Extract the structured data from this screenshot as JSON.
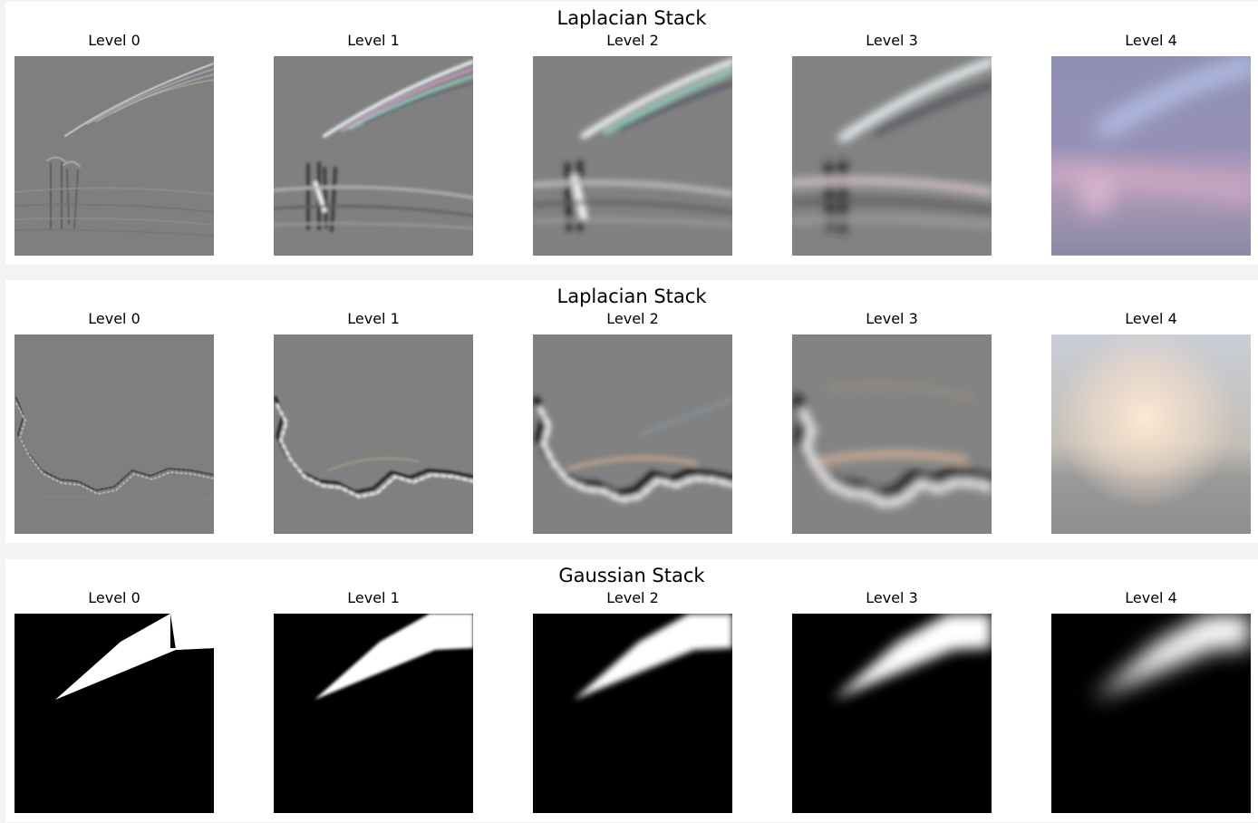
{
  "figures": [
    {
      "title": "Laplacian Stack",
      "panels": [
        {
          "label": "Level 0",
          "image": "laplacian-texture-couple-comet-level-0"
        },
        {
          "label": "Level 1",
          "image": "laplacian-texture-couple-comet-level-1"
        },
        {
          "label": "Level 2",
          "image": "laplacian-texture-couple-comet-level-2"
        },
        {
          "label": "Level 3",
          "image": "laplacian-texture-couple-comet-level-3"
        },
        {
          "label": "Level 4",
          "image": "laplacian-lowpass-sky-level-4"
        }
      ]
    },
    {
      "title": "Laplacian Stack",
      "panels": [
        {
          "label": "Level 0",
          "image": "laplacian-texture-horizon-edge-level-0"
        },
        {
          "label": "Level 1",
          "image": "laplacian-texture-horizon-edge-level-1"
        },
        {
          "label": "Level 2",
          "image": "laplacian-texture-horizon-edge-level-2"
        },
        {
          "label": "Level 3",
          "image": "laplacian-texture-horizon-edge-level-3"
        },
        {
          "label": "Level 4",
          "image": "laplacian-lowpass-glow-level-4"
        }
      ]
    },
    {
      "title": "Gaussian Stack",
      "panels": [
        {
          "label": "Level 0",
          "image": "gaussian-mask-level-0"
        },
        {
          "label": "Level 1",
          "image": "gaussian-mask-level-1"
        },
        {
          "label": "Level 2",
          "image": "gaussian-mask-level-2"
        },
        {
          "label": "Level 3",
          "image": "gaussian-mask-level-3"
        },
        {
          "label": "Level 4",
          "image": "gaussian-mask-level-4"
        }
      ]
    }
  ]
}
